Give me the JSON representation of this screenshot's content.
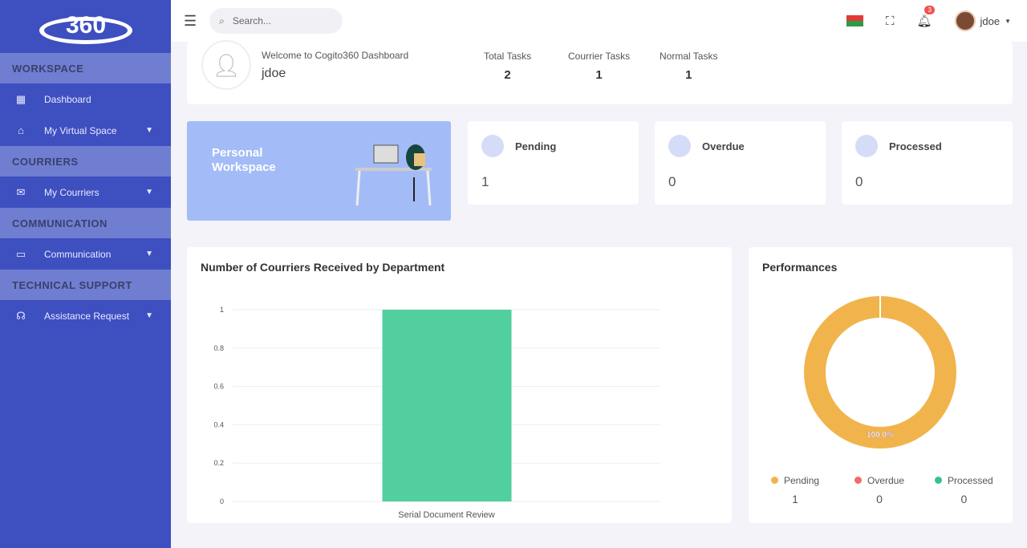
{
  "sidebar": {
    "logo": "360 COGITO",
    "sections": [
      {
        "title": "WORKSPACE",
        "items": [
          {
            "label": "Dashboard",
            "icon": "grid-icon"
          },
          {
            "label": "My Virtual Space",
            "icon": "home-icon"
          }
        ]
      },
      {
        "title": "COURRIERS",
        "items": [
          {
            "label": "My Courriers",
            "icon": "mail-icon"
          }
        ]
      },
      {
        "title": "COMMUNICATION",
        "items": [
          {
            "label": "Communication",
            "icon": "chat-icon"
          }
        ]
      },
      {
        "title": "TECHNICAL SUPPORT",
        "items": [
          {
            "label": "Assistance Request",
            "icon": "headset-icon"
          }
        ]
      }
    ]
  },
  "topbar": {
    "search_placeholder": "Search...",
    "notifications": "3",
    "user": "jdoe"
  },
  "welcome": {
    "text": "Welcome to Cogito360 Dashboard",
    "user": "jdoe",
    "stats": [
      {
        "label": "Total Tasks",
        "value": "2"
      },
      {
        "label": "Courrier Tasks",
        "value": "1"
      },
      {
        "label": "Normal Tasks",
        "value": "1"
      }
    ]
  },
  "workspace": {
    "title": "Personal Workspace"
  },
  "status_cards": [
    {
      "label": "Pending",
      "value": "1"
    },
    {
      "label": "Overdue",
      "value": "0"
    },
    {
      "label": "Processed",
      "value": "0"
    }
  ],
  "chart_data": [
    {
      "type": "bar",
      "title": "Number of Courriers Received by Department",
      "categories": [
        "Serial Document Review"
      ],
      "values": [
        1
      ],
      "ylim": [
        0,
        1
      ],
      "yticks": [
        "0",
        "0.2",
        "0.4",
        "0.6",
        "0.8",
        "1"
      ],
      "grid": true,
      "color": "#51cf9f"
    },
    {
      "type": "pie",
      "title": "Performances",
      "categories": [
        "Pending",
        "Overdue",
        "Processed"
      ],
      "values": [
        1,
        0,
        0
      ],
      "colors": [
        "#f1b44c",
        "#f46a6a",
        "#34c38f"
      ],
      "data_label": "100.0%",
      "legend": "bottom"
    }
  ]
}
